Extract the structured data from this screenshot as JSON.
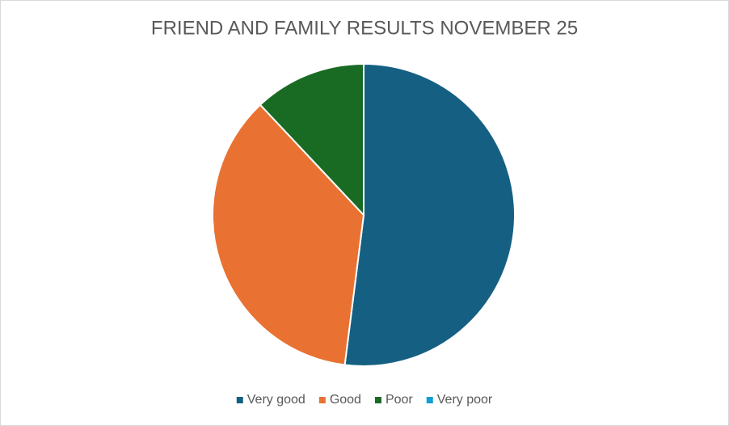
{
  "chart_data": {
    "type": "pie",
    "title": "FRIEND AND FAMILY RESULTS NOVEMBER 25",
    "categories": [
      "Very good",
      "Good",
      "Poor",
      "Very poor"
    ],
    "values": [
      52,
      36,
      12,
      0
    ],
    "colors": [
      "#156082",
      "#e97132",
      "#196b24",
      "#0f9ed5"
    ],
    "legend": "bottom"
  }
}
